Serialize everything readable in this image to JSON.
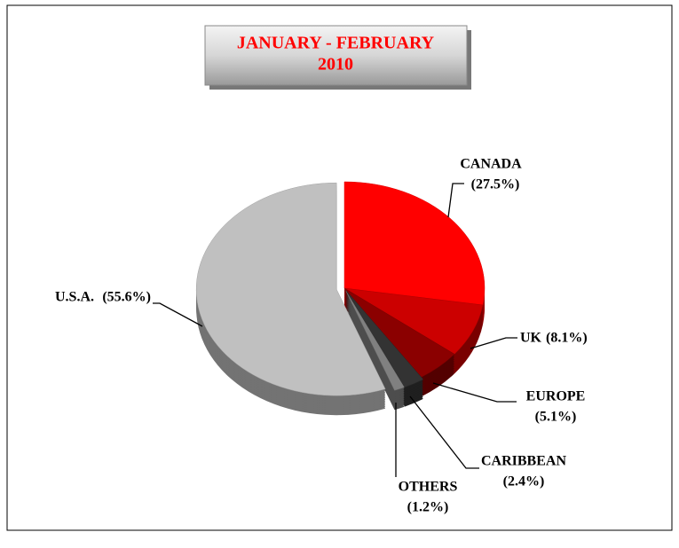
{
  "chart_data": {
    "type": "pie",
    "title": [
      "JANUARY - FEBRUARY",
      "2010"
    ],
    "categories": [
      "CANADA",
      "UK",
      "EUROPE",
      "CARIBBEAN",
      "OTHERS",
      "U.S.A."
    ],
    "values": [
      27.5,
      8.1,
      5.1,
      2.4,
      1.2,
      55.6
    ],
    "value_labels": [
      "(27.5%)",
      "(8.1%)",
      "(5.1%)",
      "(2.4%)",
      "(1.2%)",
      "(55.6%)"
    ],
    "colors": [
      "#ff0000",
      "#cc0000",
      "#8b0000",
      "#333333",
      "#808080",
      "#c0c0c0"
    ]
  }
}
